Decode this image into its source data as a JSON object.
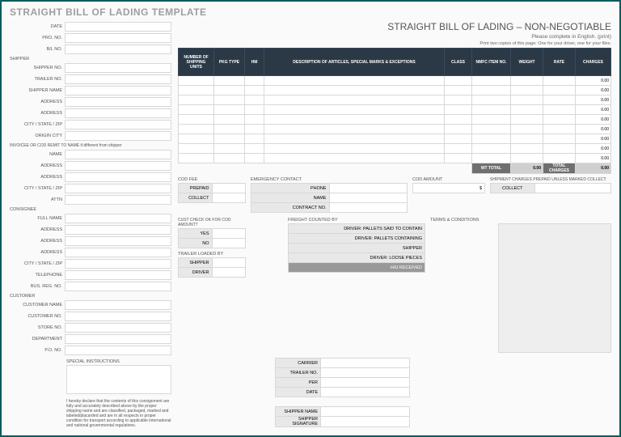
{
  "page_title": "STRAIGHT BILL OF LADING TEMPLATE",
  "heading": "STRAIGHT BILL OF LADING – NON-NEGOTIABLE",
  "instruction1": "Please complete in English. (print)",
  "instruction2": "Print two copies of this page: One for your driver, one for your files.",
  "top_fields": [
    {
      "label": "DATE"
    },
    {
      "label": "PRO. NO."
    },
    {
      "label": "B/L NO."
    }
  ],
  "shipper_section": "SHIPPER",
  "shipper_fields": [
    {
      "label": "SHIPPER NO."
    },
    {
      "label": "TRAILER  NO."
    },
    {
      "label": "SHIPPER NAME"
    },
    {
      "label": "ADDRESS"
    },
    {
      "label": "ADDRESS"
    },
    {
      "label": "CITY / STATE / ZIP"
    },
    {
      "label": "ORIGIN CITY"
    }
  ],
  "invoice_section": "INVOICEE OR COD REMIT TO NAME  if different from shipper",
  "invoice_fields": [
    {
      "label": "NAME"
    },
    {
      "label": "ADDRESS"
    },
    {
      "label": "ADDRESS"
    },
    {
      "label": "CITY / STATE / ZIP"
    },
    {
      "label": "ATTN"
    }
  ],
  "consignee_section": "CONSIGNEE",
  "consignee_fields": [
    {
      "label": "FULL NAME"
    },
    {
      "label": "ADDRESS"
    },
    {
      "label": "ADDRESS"
    },
    {
      "label": "ADDRESS"
    },
    {
      "label": "CITY / STATE / ZIP"
    },
    {
      "label": "TELEPHONE"
    },
    {
      "label": "BUS. REG. NO."
    }
  ],
  "customer_section": "CUSTOMER",
  "customer_fields": [
    {
      "label": "CUSTOMER NAME"
    },
    {
      "label": "CUSTOMER NO."
    },
    {
      "label": "STORE NO."
    },
    {
      "label": "DEPARTMENT"
    },
    {
      "label": "P.O. NO."
    }
  ],
  "table": {
    "headers": [
      "NUMBER OF SHIPPING UNITS",
      "PKG TYPE",
      "HM",
      "DESCRIPTION OF ARTICLES, SPECIAL MARKS & EXCEPTIONS",
      "CLASS",
      "NMFC ITEM NO.",
      "WEIGHT",
      "RATE",
      "CHARGES"
    ],
    "col_widths": [
      "44px",
      "38px",
      "24px",
      "auto",
      "34px",
      "48px",
      "40px",
      "40px",
      "44px"
    ],
    "header_bg": "#2b3846",
    "header_color": "#ffffff",
    "row_count": 9,
    "default_charge": "0.00",
    "wt_total_label": "WT TOTAL",
    "wt_total_value": "0.00",
    "total_charges_label": "TOTAL CHARGES",
    "total_charges_value": "0.00"
  },
  "cod_fee": {
    "title": "COD FEE",
    "rows": [
      "PREPAID",
      "COLLECT"
    ]
  },
  "emergency": {
    "title": "EMERGENCY CONTACT",
    "rows": [
      "PHONE",
      "NAME",
      "CONTRACT NO."
    ]
  },
  "cod_amount": {
    "title": "COD AMOUNT",
    "value": "$"
  },
  "shipment_charges": {
    "title": "SHIPMENT CHARGES PREPAID UNLESS MARKED COLLECT:",
    "button": "COLLECT"
  },
  "cust_check": {
    "title": "CUST CHECK OK FOR COD AMOUNT?",
    "rows": [
      "YES",
      "NO"
    ]
  },
  "trailer_loaded": {
    "title": "TRAILER LOADED BY",
    "rows": [
      "SHIPPER",
      "DRIVER"
    ]
  },
  "freight_counted": {
    "title": "FREIGHT COUNTED BY",
    "rows": [
      "DRIVER: PALLETS SAID TO CONTAIN",
      "DRIVER: PALLETS CONTAINING",
      "SHIPPER",
      "DRIVER: LOOSE PIECES",
      "H/U RECEIVED"
    ]
  },
  "carrier_block": [
    "CARRIER",
    "TRAILER NO.",
    "PER",
    "DATE",
    "",
    "SHIPPER NAME",
    "SHIPPER SIGNATURE"
  ],
  "terms_title": "TERMS & CONDITIONS",
  "special_title": "SPECIAL INSTRUCTIONS",
  "declaration": "I hereby declare that the contents of this consignment are fully and accurately described above by the proper shipping name and are classified, packaged, marked and labeled/placarded and are in all respects in proper condition for transport according to applicable international and national governmental regulations.",
  "colors": {
    "frame_border": "#0a5c5c",
    "title_color": "#9e9e9e",
    "cell_border": "#d8d8d8",
    "dark_cell": "#6f6f6f",
    "grey_cell": "#d0d0d0",
    "section_grey": "#e8e8e8"
  }
}
